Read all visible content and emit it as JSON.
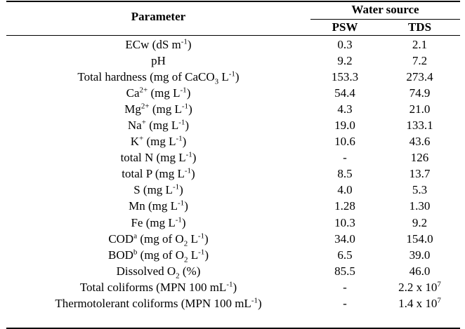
{
  "table": {
    "header": {
      "parameter": "Parameter",
      "water_source": "Water source",
      "psw": "PSW",
      "tds": "TDS"
    },
    "rows": [
      {
        "param": [
          "ECw (dS m",
          {
            "sup": "-1"
          },
          ")"
        ],
        "psw": "0.3",
        "tds": "2.1"
      },
      {
        "param": [
          "pH"
        ],
        "psw": "9.2",
        "tds": "7.2"
      },
      {
        "param": [
          "Total hardness (mg of CaCO",
          {
            "sub": "3"
          },
          " L",
          {
            "sup": "-1"
          },
          ")"
        ],
        "psw": "153.3",
        "tds": "273.4"
      },
      {
        "param": [
          "Ca",
          {
            "sup": "2+"
          },
          " (mg L",
          {
            "sup": "-1"
          },
          ")"
        ],
        "psw": "54.4",
        "tds": "74.9"
      },
      {
        "param": [
          "Mg",
          {
            "sup": "2+"
          },
          " (mg L",
          {
            "sup": "-1"
          },
          ")"
        ],
        "psw": "4.3",
        "tds": "21.0"
      },
      {
        "param": [
          "Na",
          {
            "sup": "+"
          },
          " (mg L",
          {
            "sup": "-1"
          },
          ")"
        ],
        "psw": "19.0",
        "tds": "133.1"
      },
      {
        "param": [
          "K",
          {
            "sup": "+"
          },
          " (mg L",
          {
            "sup": "-1"
          },
          ")"
        ],
        "psw": "10.6",
        "tds": "43.6"
      },
      {
        "param": [
          "total N (mg L",
          {
            "sup": "-1"
          },
          ")"
        ],
        "psw": "-",
        "tds": "126"
      },
      {
        "param": [
          "total P (mg L",
          {
            "sup": "-1"
          },
          ")"
        ],
        "psw": "8.5",
        "tds": "13.7"
      },
      {
        "param": [
          "S (mg L",
          {
            "sup": "-1"
          },
          ")"
        ],
        "psw": "4.0",
        "tds": "5.3"
      },
      {
        "param": [
          "Mn (mg L",
          {
            "sup": "-1"
          },
          ")"
        ],
        "psw": "1.28",
        "tds": "1.30"
      },
      {
        "param": [
          "Fe (mg L",
          {
            "sup": "-1"
          },
          ")"
        ],
        "psw": "10.3",
        "tds": "9.2"
      },
      {
        "param": [
          "COD",
          {
            "sup": "a"
          },
          " (mg of O",
          {
            "sub": "2"
          },
          " L",
          {
            "sup": "-1"
          },
          ")"
        ],
        "psw": "34.0",
        "tds": "154.0"
      },
      {
        "param": [
          "BOD",
          {
            "sup": "b"
          },
          " (mg of O",
          {
            "sub": "2"
          },
          " L",
          {
            "sup": "-1"
          },
          ")"
        ],
        "psw": "6.5",
        "tds": "39.0"
      },
      {
        "param": [
          "Dissolved O",
          {
            "sub": "2"
          },
          " (%)"
        ],
        "psw": "85.5",
        "tds": "46.0"
      },
      {
        "param": [
          "Total coliforms (MPN 100 mL",
          {
            "sup": "-1"
          },
          ")"
        ],
        "psw": "-",
        "tds": [
          "2.2 x 10",
          {
            "sup": "7"
          }
        ]
      },
      {
        "param": [
          "Thermotolerant coliforms (MPN 100 mL",
          {
            "sup": "-1"
          },
          ")"
        ],
        "psw": "-",
        "tds": [
          "1.4 x 10",
          {
            "sup": "7"
          }
        ]
      }
    ]
  }
}
